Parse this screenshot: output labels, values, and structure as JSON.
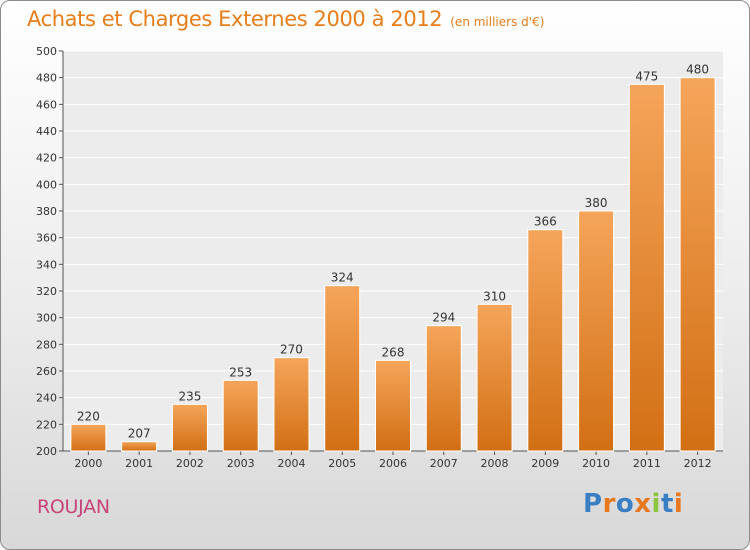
{
  "header": {
    "title": "Achats et Charges Externes 2000 à 2012",
    "unit": "(en milliers d'€)"
  },
  "footer": {
    "location": "ROUJAN",
    "logo_text": "Proxiti",
    "logo_colors": [
      "#3a7fc4",
      "#e8781e",
      "#3a7fc4",
      "#e8781e",
      "#8cc63e",
      "#3a7fc4",
      "#e8781e"
    ]
  },
  "chart_data": {
    "type": "bar",
    "title": "Achats et Charges Externes 2000 à 2012",
    "subtitle": "(en milliers d'€)",
    "categories": [
      "2000",
      "2001",
      "2002",
      "2003",
      "2004",
      "2005",
      "2006",
      "2007",
      "2008",
      "2009",
      "2010",
      "2011",
      "2012"
    ],
    "values": [
      220,
      207,
      235,
      253,
      270,
      324,
      268,
      294,
      310,
      366,
      380,
      475,
      480
    ],
    "ylim": [
      200,
      500
    ],
    "ytick_step": 20,
    "grid": true,
    "bar_color_top": "#f5a55a",
    "bar_color_bottom": "#d26f14"
  }
}
